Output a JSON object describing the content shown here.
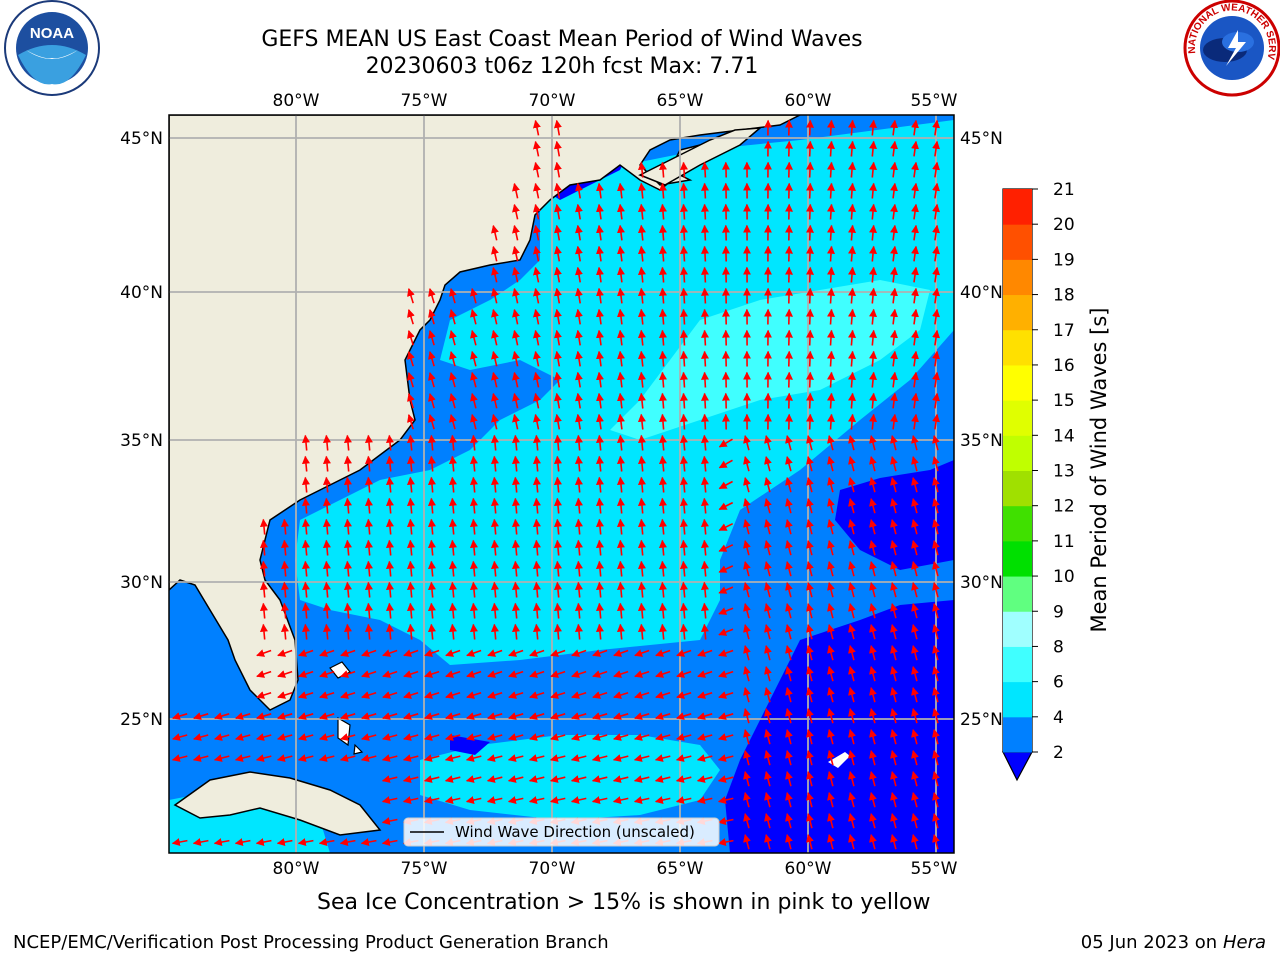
{
  "title": {
    "line1": "GEFS MEAN US East Coast Mean Period of Wind Waves",
    "line2": "20230603 t06z 120h fcst   Max: 7.71"
  },
  "map": {
    "lon_ticks": [
      "80°W",
      "75°W",
      "70°W",
      "65°W",
      "60°W",
      "55°W"
    ],
    "lat_ticks": [
      "45°N",
      "40°N",
      "35°N",
      "30°N",
      "25°N"
    ],
    "extent": {
      "lon": [
        -85,
        -54.3
      ],
      "lat": [
        20.4,
        45.9
      ]
    },
    "legend_label": "Wind Wave Direction (unscaled)",
    "arrow_color": "#ff0000",
    "land_color": "#efeddd"
  },
  "colorbar": {
    "label": "Mean Period of Wind Waves [s]",
    "ticks": [
      "2",
      "4",
      "6",
      "8",
      "9",
      "10",
      "11",
      "12",
      "13",
      "14",
      "15",
      "16",
      "17",
      "18",
      "19",
      "20",
      "21"
    ],
    "colors": [
      "#0080ff",
      "#00e6ff",
      "#40ffff",
      "#a0ffff",
      "#60ff80",
      "#00e000",
      "#40e000",
      "#a0e000",
      "#c0ff00",
      "#e0ff00",
      "#ffff00",
      "#ffe000",
      "#ffb000",
      "#ff8800",
      "#ff5000",
      "#ff2000"
    ],
    "under_color": "#0000ff"
  },
  "caption": "Sea Ice Concentration > 15% is shown in pink to yellow",
  "footer": {
    "credit": "NCEP/EMC/Verification Post Processing Product Generation Branch",
    "date": "05 Jun 2023 on",
    "machine": "Hera"
  },
  "logos": {
    "noaa_text": "NOAA",
    "nws_text": "NATIONAL WEATHER SERVICE"
  }
}
